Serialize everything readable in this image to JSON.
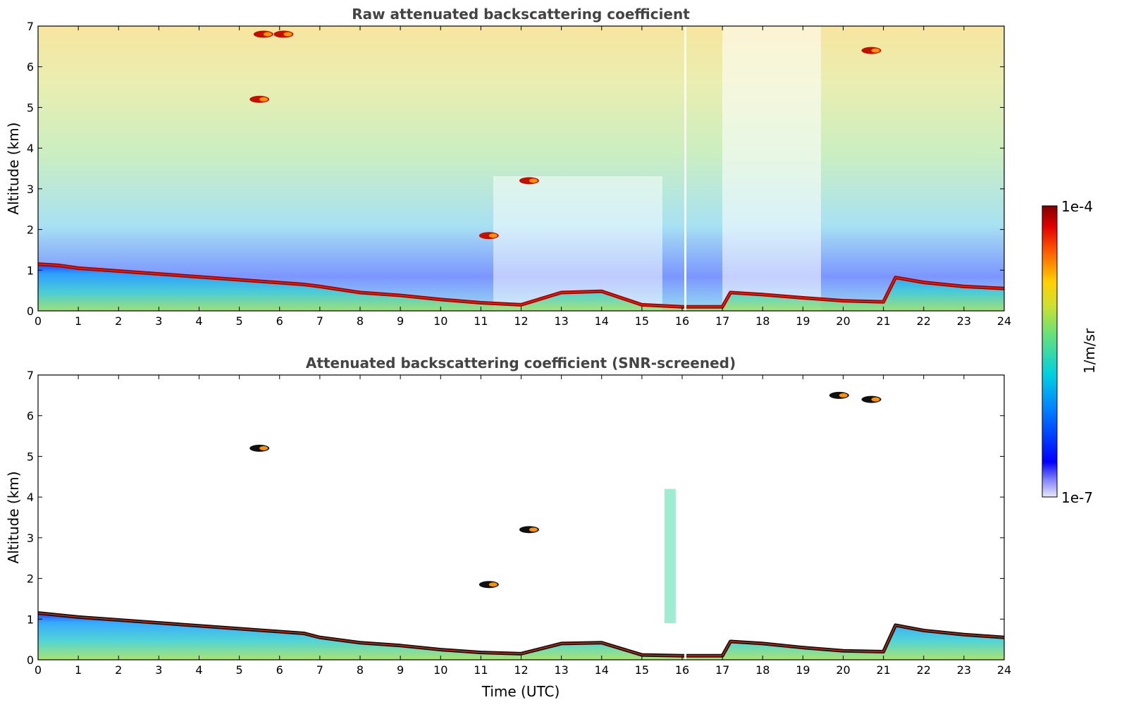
{
  "chart_data": [
    {
      "type": "heatmap",
      "title": "Raw attenuated backscattering coefficient",
      "xlabel": "",
      "ylabel": "Altitude (km)",
      "xlim": [
        0,
        24
      ],
      "ylim": [
        0,
        7
      ],
      "x_ticks": [
        "0",
        "1",
        "2",
        "3",
        "4",
        "5",
        "6",
        "7",
        "8",
        "9",
        "10",
        "11",
        "12",
        "13",
        "14",
        "15",
        "16",
        "17",
        "18",
        "19",
        "20",
        "21",
        "22",
        "23",
        "24"
      ],
      "y_ticks": [
        "0",
        "1",
        "2",
        "3",
        "4",
        "5",
        "6",
        "7"
      ],
      "cloud_base_layer": [
        {
          "t": 0,
          "alt": 1.15
        },
        {
          "t": 0.5,
          "alt": 1.12
        },
        {
          "t": 1,
          "alt": 1.05
        },
        {
          "t": 6.6,
          "alt": 0.65
        },
        {
          "t": 7,
          "alt": 0.6
        },
        {
          "t": 8,
          "alt": 0.45
        },
        {
          "t": 9,
          "alt": 0.38
        },
        {
          "t": 10,
          "alt": 0.28
        },
        {
          "t": 11,
          "alt": 0.2
        },
        {
          "t": 12,
          "alt": 0.15
        },
        {
          "t": 13,
          "alt": 0.45
        },
        {
          "t": 14,
          "alt": 0.48
        },
        {
          "t": 15,
          "alt": 0.15
        },
        {
          "t": 16,
          "alt": 0.1
        },
        {
          "t": 17,
          "alt": 0.1
        },
        {
          "t": 17.2,
          "alt": 0.45
        },
        {
          "t": 18,
          "alt": 0.4
        },
        {
          "t": 19,
          "alt": 0.32
        },
        {
          "t": 20,
          "alt": 0.25
        },
        {
          "t": 21,
          "alt": 0.22
        },
        {
          "t": 21.3,
          "alt": 0.82
        },
        {
          "t": 22,
          "alt": 0.7
        },
        {
          "t": 23,
          "alt": 0.6
        },
        {
          "t": 24,
          "alt": 0.55
        }
      ],
      "elevated_features": [
        {
          "t": 12.2,
          "alt": 3.2
        },
        {
          "t": 11.2,
          "alt": 1.85
        },
        {
          "t": 20.7,
          "alt": 6.4
        },
        {
          "t": 5.5,
          "alt": 5.2
        },
        {
          "t": 5.6,
          "alt": 6.8
        },
        {
          "t": 6.1,
          "alt": 6.8
        }
      ]
    },
    {
      "type": "heatmap",
      "title": "Attenuated backscattering coefficient (SNR-screened)",
      "xlabel": "Time (UTC)",
      "ylabel": "Altitude (km)",
      "xlim": [
        0,
        24
      ],
      "ylim": [
        0,
        7
      ],
      "x_ticks": [
        "0",
        "1",
        "2",
        "3",
        "4",
        "5",
        "6",
        "7",
        "8",
        "9",
        "10",
        "11",
        "12",
        "13",
        "14",
        "15",
        "16",
        "17",
        "18",
        "19",
        "20",
        "21",
        "22",
        "23",
        "24"
      ],
      "y_ticks": [
        "0",
        "1",
        "2",
        "3",
        "4",
        "5",
        "6",
        "7"
      ],
      "cloud_base_layer": [
        {
          "t": 0,
          "alt": 1.15
        },
        {
          "t": 1,
          "alt": 1.05
        },
        {
          "t": 6.6,
          "alt": 0.65
        },
        {
          "t": 7,
          "alt": 0.55
        },
        {
          "t": 8,
          "alt": 0.42
        },
        {
          "t": 9,
          "alt": 0.35
        },
        {
          "t": 10,
          "alt": 0.25
        },
        {
          "t": 11,
          "alt": 0.18
        },
        {
          "t": 12,
          "alt": 0.15
        },
        {
          "t": 13,
          "alt": 0.4
        },
        {
          "t": 14,
          "alt": 0.42
        },
        {
          "t": 15,
          "alt": 0.12
        },
        {
          "t": 16,
          "alt": 0.1
        },
        {
          "t": 17,
          "alt": 0.1
        },
        {
          "t": 17.2,
          "alt": 0.45
        },
        {
          "t": 18,
          "alt": 0.4
        },
        {
          "t": 19,
          "alt": 0.3
        },
        {
          "t": 20,
          "alt": 0.22
        },
        {
          "t": 21,
          "alt": 0.2
        },
        {
          "t": 21.3,
          "alt": 0.85
        },
        {
          "t": 22,
          "alt": 0.72
        },
        {
          "t": 23,
          "alt": 0.62
        },
        {
          "t": 24,
          "alt": 0.55
        }
      ],
      "elevated_features": [
        {
          "t": 12.2,
          "alt": 3.2
        },
        {
          "t": 11.2,
          "alt": 1.85
        },
        {
          "t": 20.7,
          "alt": 6.4
        },
        {
          "t": 5.5,
          "alt": 5.2
        },
        {
          "t": 15.7,
          "alt": 2.5
        },
        {
          "t": 19.9,
          "alt": 6.5
        }
      ]
    }
  ],
  "colorbar": {
    "max_label": "1e-4",
    "min_label": "1e-7",
    "unit_label": "1/m/sr",
    "colors": [
      "#e8e8f8",
      "#0000ff",
      "#00c0ff",
      "#40e0c0",
      "#a0e040",
      "#ffe000",
      "#ff8000",
      "#ff0000",
      "#800000"
    ]
  }
}
